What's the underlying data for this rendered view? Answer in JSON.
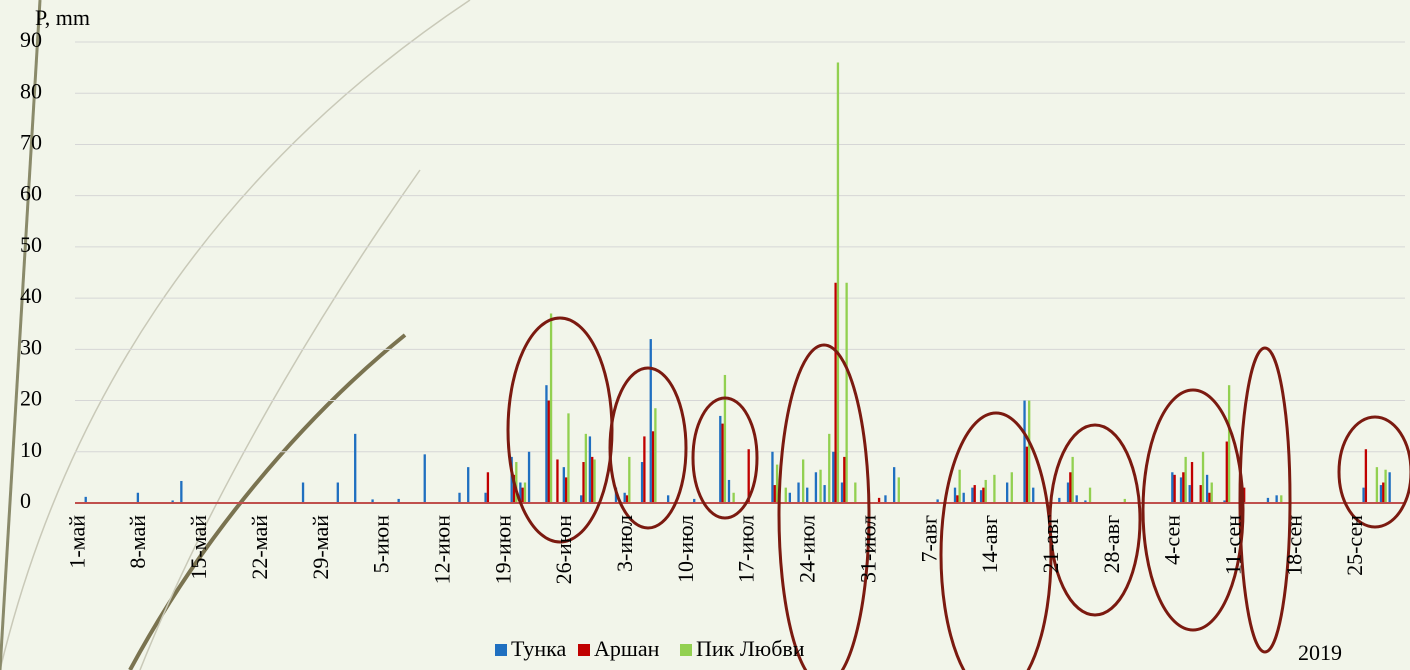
{
  "chart_data": {
    "type": "bar",
    "y_label": "P, mm",
    "annotation": "2019",
    "categories": [
      "1-май",
      null,
      null,
      null,
      null,
      null,
      null,
      "8-май",
      null,
      null,
      null,
      null,
      null,
      null,
      "15-май",
      null,
      null,
      null,
      null,
      null,
      null,
      "22-май",
      null,
      null,
      null,
      null,
      null,
      null,
      "29-май",
      null,
      null,
      null,
      null,
      null,
      null,
      "5-июн",
      null,
      null,
      null,
      null,
      null,
      null,
      "12-июн",
      null,
      null,
      null,
      null,
      null,
      null,
      "19-июн",
      null,
      null,
      null,
      null,
      null,
      null,
      "26-июн",
      null,
      null,
      null,
      null,
      null,
      null,
      "3-июл",
      null,
      null,
      null,
      null,
      null,
      null,
      "10-июл",
      null,
      null,
      null,
      null,
      null,
      null,
      "17-июл",
      null,
      null,
      null,
      null,
      null,
      null,
      "24-июл",
      null,
      null,
      null,
      null,
      null,
      null,
      "31-июл",
      null,
      null,
      null,
      null,
      null,
      null,
      "7-авг",
      null,
      null,
      null,
      null,
      null,
      null,
      "14-авг",
      null,
      null,
      null,
      null,
      null,
      null,
      "21-авг",
      null,
      null,
      null,
      null,
      null,
      null,
      "28-авг",
      null,
      null,
      null,
      null,
      null,
      null,
      "4-сен",
      null,
      null,
      null,
      null,
      null,
      null,
      "11-сен",
      null,
      null,
      null,
      null,
      null,
      null,
      "18-сен",
      null,
      null,
      null,
      null,
      null,
      null,
      "25-сен",
      null,
      null,
      null,
      null,
      null
    ],
    "series": [
      {
        "name": "Тунка",
        "color": "#1f6fc0",
        "values": [
          0,
          1.2,
          0,
          0,
          0,
          0,
          0,
          2,
          0,
          0,
          0,
          0.5,
          4.3,
          0,
          0,
          0,
          0,
          0,
          0,
          0,
          0,
          0,
          0,
          0,
          0,
          0,
          4,
          0,
          0,
          0,
          4,
          0,
          13.5,
          0,
          0.7,
          0,
          0,
          0.8,
          0,
          0,
          9.5,
          0,
          0,
          0,
          2,
          7,
          0,
          2,
          0,
          0,
          9,
          4,
          10,
          0,
          23,
          0,
          7,
          0,
          1.5,
          13,
          0,
          0,
          3,
          2,
          0,
          8,
          32,
          0,
          1.5,
          0,
          0,
          0.8,
          0,
          0,
          17,
          4.5,
          0,
          0,
          0,
          0,
          10,
          0,
          2,
          4,
          3,
          6,
          3.5,
          10,
          4,
          0,
          0,
          0,
          0,
          1.5,
          7,
          0,
          0,
          0,
          0,
          0.7,
          0,
          3,
          2,
          3,
          2.5,
          0,
          0,
          4,
          0,
          20,
          3,
          0,
          0,
          1,
          4,
          1.5,
          0.5,
          0,
          0,
          0,
          0,
          0,
          0,
          0,
          0,
          0,
          6,
          5,
          3.5,
          0,
          5.5,
          0,
          0.5,
          0,
          4,
          0,
          0,
          1,
          1.5,
          0,
          0,
          0,
          0,
          0,
          0,
          0,
          0,
          0,
          3,
          0,
          3.5,
          6,
          0
        ]
      },
      {
        "name": "Аршан",
        "color": "#c00000",
        "values": [
          0,
          0,
          0,
          0,
          0,
          0,
          0,
          0,
          0,
          0,
          0,
          0,
          0,
          0,
          0,
          0,
          0,
          0,
          0,
          0,
          0,
          0,
          0,
          0,
          0,
          0,
          0,
          0,
          0,
          0,
          0,
          0,
          0,
          0,
          0,
          0,
          0,
          0,
          0,
          0,
          0,
          0,
          0,
          0,
          0,
          0,
          0,
          6,
          0,
          0,
          5.5,
          3,
          0,
          0,
          20,
          8.5,
          5,
          0,
          8,
          9,
          0,
          0,
          0,
          1.5,
          0,
          13,
          14,
          0,
          0,
          0,
          0,
          0,
          0,
          0,
          15.5,
          0,
          0,
          10.5,
          0,
          0,
          3.5,
          0,
          0,
          0,
          0,
          0,
          0,
          43,
          9,
          0,
          0,
          0,
          1,
          0,
          0,
          0,
          0,
          0,
          0,
          0,
          0,
          1.5,
          0,
          3.5,
          3,
          0,
          0,
          0,
          0,
          11,
          0,
          0,
          0,
          0,
          6,
          0,
          0,
          0,
          0,
          0,
          0,
          0,
          0,
          0,
          0,
          0,
          5.5,
          6,
          8,
          3.5,
          2,
          0,
          12,
          0,
          3,
          0,
          0,
          0,
          0,
          0,
          0,
          0,
          0,
          0,
          0,
          0,
          0,
          0,
          10.5,
          0,
          4,
          0,
          0
        ]
      },
      {
        "name": "Пик Любви",
        "color": "#92d050",
        "values": [
          0,
          0,
          0,
          0,
          0,
          0,
          0,
          0,
          0,
          0,
          0,
          0,
          0,
          0,
          0,
          0,
          0,
          0,
          0,
          0,
          0,
          0,
          0,
          0,
          0,
          0,
          0,
          0,
          0,
          0,
          0,
          0,
          0,
          0,
          0,
          0,
          0,
          0,
          0,
          0,
          0,
          0,
          0,
          0,
          0,
          0,
          0,
          0,
          0,
          0,
          8,
          4,
          0,
          0,
          37,
          0,
          17.5,
          0,
          13.5,
          8.5,
          0,
          0,
          0,
          9,
          0,
          0,
          18.5,
          0,
          0,
          0,
          0,
          0,
          0,
          0,
          25,
          2,
          0,
          0,
          0,
          0,
          7.5,
          3,
          0,
          8.5,
          0,
          6.5,
          13.5,
          86,
          43,
          4,
          0,
          0,
          0,
          0,
          5,
          0,
          0,
          0,
          0,
          0,
          0,
          6.5,
          0,
          0,
          4.5,
          5.5,
          0,
          6,
          0,
          20,
          0,
          0,
          0,
          0,
          9,
          0,
          3,
          0,
          0,
          0,
          0.8,
          0,
          0,
          0,
          0,
          0,
          0,
          9,
          0,
          10,
          4,
          0,
          23,
          0,
          0,
          0,
          0,
          0,
          1.5,
          0,
          0,
          0,
          0,
          0,
          0,
          0,
          0,
          0,
          0,
          7,
          6.5,
          0,
          0
        ]
      }
    ],
    "ylim": [
      0,
      90
    ],
    "yticks": [
      0,
      10,
      20,
      30,
      40,
      50,
      60,
      70,
      80,
      90
    ],
    "grid": true
  }
}
